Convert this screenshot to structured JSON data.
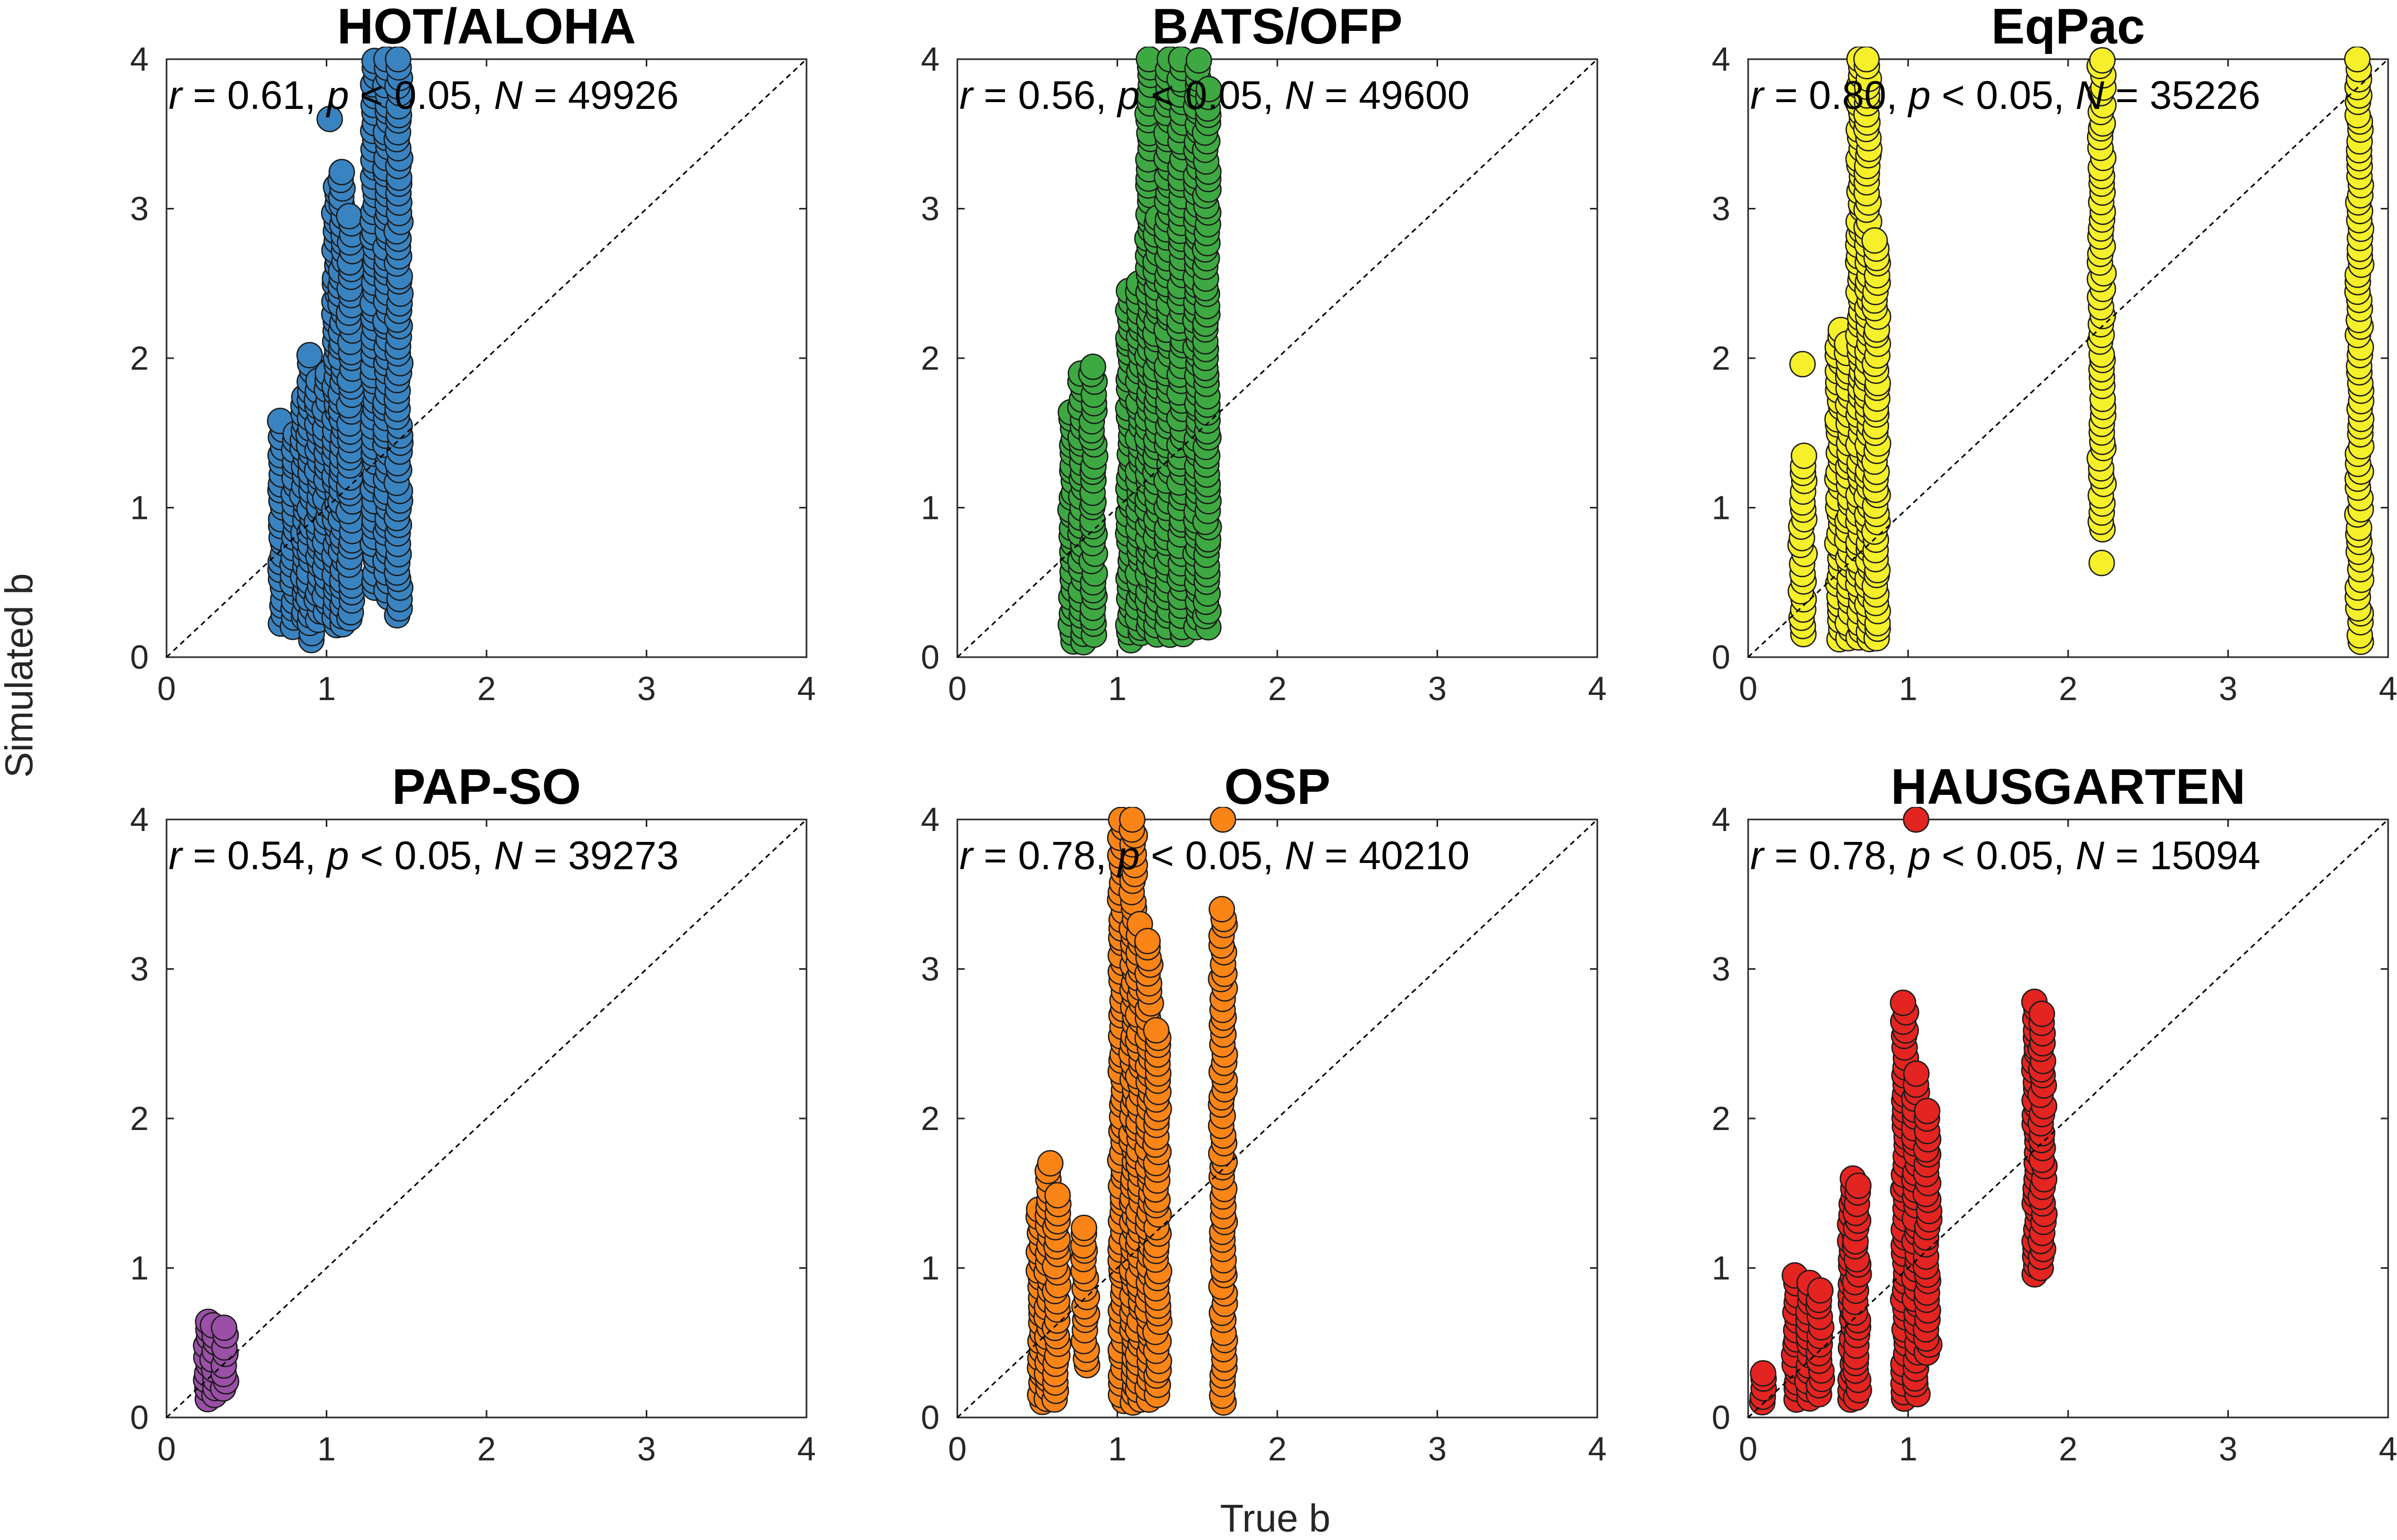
{
  "figure": {
    "xlabel": "True b",
    "ylabel": "Simulated b"
  },
  "chart_data": [
    {
      "type": "scatter",
      "title": "HOT/ALOHA",
      "stats": {
        "r": "0.61",
        "p": "0.05",
        "N": "49926"
      },
      "color": "#3a83c1",
      "xlim": [
        0,
        4
      ],
      "ylim": [
        0,
        4
      ],
      "xticks": [
        0,
        1,
        2,
        3,
        4
      ],
      "yticks": [
        0,
        1,
        2,
        3,
        4
      ],
      "reference_line": "y = x",
      "columns": [
        {
          "x": 0.72,
          "ymin": 0.22,
          "ymax": 1.58
        },
        {
          "x": 0.8,
          "ymin": 0.2,
          "ymax": 1.5
        },
        {
          "x": 0.86,
          "ymin": 0.25,
          "ymax": 1.75
        },
        {
          "x": 0.9,
          "ymin": 0.1,
          "ymax": 2.02
        },
        {
          "x": 0.95,
          "ymin": 0.25,
          "ymax": 1.85
        },
        {
          "x": 1.0,
          "ymin": 0.3,
          "ymax": 1.9
        },
        {
          "x": 1.06,
          "ymin": 0.2,
          "ymax": 3.15
        },
        {
          "x": 1.1,
          "ymin": 0.22,
          "ymax": 3.25
        },
        {
          "x": 1.15,
          "ymin": 0.25,
          "ymax": 2.95
        },
        {
          "x": 1.3,
          "ymin": 0.45,
          "ymax": 4.0
        },
        {
          "x": 1.38,
          "ymin": 0.4,
          "ymax": 4.0
        },
        {
          "x": 1.45,
          "ymin": 0.28,
          "ymax": 4.0
        }
      ],
      "points": [
        {
          "x": 1.02,
          "y": 3.6
        }
      ]
    },
    {
      "type": "scatter",
      "title": "BATS/OFP",
      "stats": {
        "r": "0.56",
        "p": "0.05",
        "N": "49600"
      },
      "color": "#3ea942",
      "xlim": [
        0,
        4
      ],
      "ylim": [
        0,
        4
      ],
      "xticks": [
        0,
        1,
        2,
        3,
        4
      ],
      "yticks": [
        0,
        1,
        2,
        3,
        4
      ],
      "reference_line": "y = x",
      "columns": [
        {
          "x": 0.72,
          "ymin": 0.1,
          "ymax": 1.65
        },
        {
          "x": 0.78,
          "ymin": 0.1,
          "ymax": 1.9
        },
        {
          "x": 0.85,
          "ymin": 0.15,
          "ymax": 1.95
        },
        {
          "x": 1.08,
          "ymin": 0.1,
          "ymax": 2.45
        },
        {
          "x": 1.14,
          "ymin": 0.15,
          "ymax": 2.5
        },
        {
          "x": 1.2,
          "ymin": 0.2,
          "ymax": 4.0
        },
        {
          "x": 1.25,
          "ymin": 0.15,
          "ymax": 2.95
        },
        {
          "x": 1.32,
          "ymin": 0.15,
          "ymax": 4.0
        },
        {
          "x": 1.4,
          "ymin": 0.15,
          "ymax": 4.0
        },
        {
          "x": 1.5,
          "ymin": 0.2,
          "ymax": 4.0
        },
        {
          "x": 1.56,
          "ymin": 0.2,
          "ymax": 3.8
        }
      ],
      "points": []
    },
    {
      "type": "scatter",
      "title": "EqPac",
      "stats": {
        "r": "0.80",
        "p": "0.05",
        "N": "35226"
      },
      "color": "#f5f02a",
      "xlim": [
        0,
        4
      ],
      "ylim": [
        0,
        4
      ],
      "xticks": [
        0,
        1,
        2,
        3,
        4
      ],
      "yticks": [
        0,
        1,
        2,
        3,
        4
      ],
      "reference_line": "y = x",
      "columns": [
        {
          "x": 0.34,
          "ymin": 0.15,
          "ymax": 1.35
        },
        {
          "x": 0.57,
          "ymin": 0.12,
          "ymax": 2.2
        },
        {
          "x": 0.63,
          "ymin": 0.12,
          "ymax": 2.1
        },
        {
          "x": 0.7,
          "ymin": 0.12,
          "ymax": 4.0
        },
        {
          "x": 0.75,
          "ymin": 0.12,
          "ymax": 4.0
        },
        {
          "x": 0.8,
          "ymin": 0.12,
          "ymax": 2.8
        },
        {
          "x": 2.21,
          "ymin": 0.85,
          "ymax": 4.0
        },
        {
          "x": 3.82,
          "ymin": 0.1,
          "ymax": 4.0
        }
      ],
      "points": [
        {
          "x": 0.34,
          "y": 1.96
        },
        {
          "x": 2.21,
          "y": 0.63
        }
      ]
    },
    {
      "type": "scatter",
      "title": "PAP-SO",
      "stats": {
        "r": "0.54",
        "p": "0.05",
        "N": "39273"
      },
      "color": "#9a50a6",
      "xlim": [
        0,
        4
      ],
      "ylim": [
        0,
        4
      ],
      "xticks": [
        0,
        1,
        2,
        3,
        4
      ],
      "yticks": [
        0,
        1,
        2,
        3,
        4
      ],
      "reference_line": "y = x",
      "columns": [
        {
          "x": 0.26,
          "ymin": 0.12,
          "ymax": 0.65
        },
        {
          "x": 0.3,
          "ymin": 0.15,
          "ymax": 0.62
        },
        {
          "x": 0.36,
          "ymin": 0.18,
          "ymax": 0.6
        }
      ],
      "points": []
    },
    {
      "type": "scatter",
      "title": "OSP",
      "stats": {
        "r": "0.78",
        "p": "0.05",
        "N": "40210"
      },
      "color": "#fb8416",
      "xlim": [
        0,
        4
      ],
      "ylim": [
        0,
        4
      ],
      "xticks": [
        0,
        1,
        2,
        3,
        4
      ],
      "yticks": [
        0,
        1,
        2,
        3,
        4
      ],
      "reference_line": "y = x",
      "columns": [
        {
          "x": 0.52,
          "ymin": 0.1,
          "ymax": 1.4
        },
        {
          "x": 0.57,
          "ymin": 0.12,
          "ymax": 1.7
        },
        {
          "x": 0.62,
          "ymin": 0.12,
          "ymax": 1.5
        },
        {
          "x": 0.8,
          "ymin": 0.35,
          "ymax": 1.28
        },
        {
          "x": 1.03,
          "ymin": 0.1,
          "ymax": 4.0
        },
        {
          "x": 1.1,
          "ymin": 0.1,
          "ymax": 4.0
        },
        {
          "x": 1.14,
          "ymin": 0.12,
          "ymax": 3.3
        },
        {
          "x": 1.2,
          "ymin": 0.12,
          "ymax": 3.2
        },
        {
          "x": 1.25,
          "ymin": 0.15,
          "ymax": 2.6
        },
        {
          "x": 1.66,
          "ymin": 0.1,
          "ymax": 3.4
        }
      ],
      "points": [
        {
          "x": 1.66,
          "y": 4.0
        }
      ]
    },
    {
      "type": "scatter",
      "title": "HAUSGARTEN",
      "stats": {
        "r": "0.78",
        "p": "0.05",
        "N": "15094"
      },
      "color": "#e32420",
      "xlim": [
        0,
        4
      ],
      "ylim": [
        0,
        4
      ],
      "xticks": [
        0,
        1,
        2,
        3,
        4
      ],
      "yticks": [
        0,
        1,
        2,
        3,
        4
      ],
      "reference_line": "y = x",
      "columns": [
        {
          "x": 0.1,
          "ymin": 0.1,
          "ymax": 0.3
        },
        {
          "x": 0.3,
          "ymin": 0.12,
          "ymax": 0.95
        },
        {
          "x": 0.38,
          "ymin": 0.12,
          "ymax": 0.9
        },
        {
          "x": 0.45,
          "ymin": 0.15,
          "ymax": 0.85
        },
        {
          "x": 0.65,
          "ymin": 0.12,
          "ymax": 1.6
        },
        {
          "x": 0.68,
          "ymin": 0.12,
          "ymax": 1.55
        },
        {
          "x": 0.98,
          "ymin": 0.12,
          "ymax": 2.78
        },
        {
          "x": 1.05,
          "ymin": 0.15,
          "ymax": 2.3
        },
        {
          "x": 1.12,
          "ymin": 0.42,
          "ymax": 2.05
        },
        {
          "x": 1.8,
          "ymin": 0.95,
          "ymax": 2.78
        },
        {
          "x": 1.84,
          "ymin": 1.0,
          "ymax": 2.7
        }
      ],
      "points": [
        {
          "x": 1.05,
          "y": 4.0
        }
      ]
    }
  ]
}
